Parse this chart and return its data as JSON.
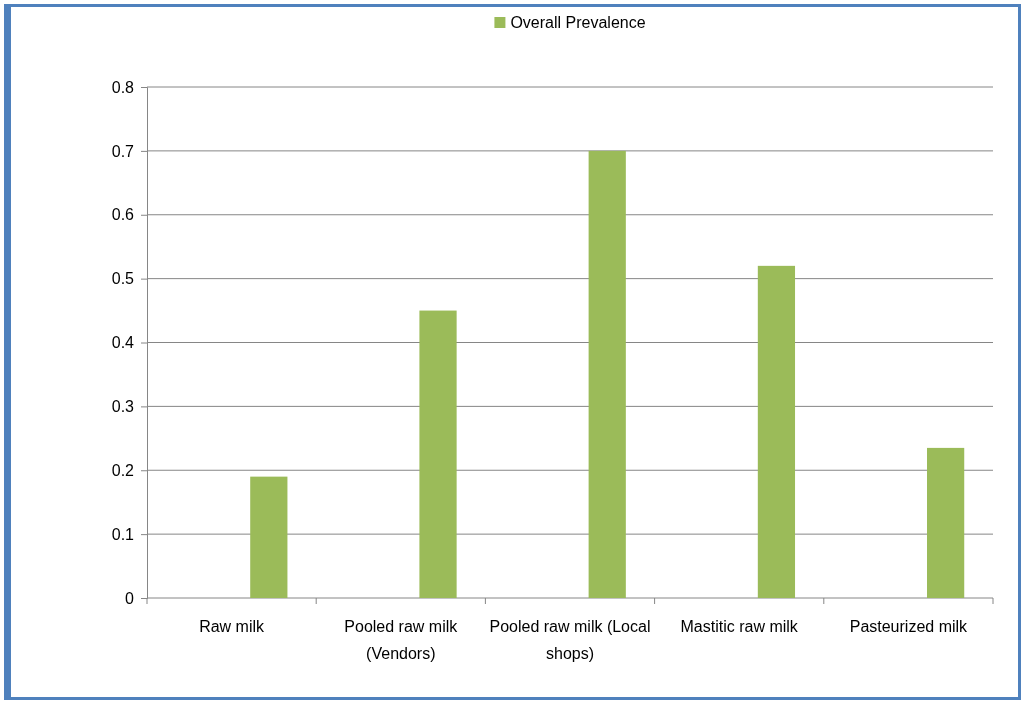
{
  "chart_data": {
    "type": "bar",
    "categories": [
      "Raw milk",
      "Pooled raw milk (Vendors)",
      "Pooled raw milk (Local shops)",
      "Mastitic raw milk",
      "Pasteurized milk"
    ],
    "series": [
      {
        "name": "Overall Prevalence",
        "color": "#9bbb59",
        "values": [
          0.19,
          0.45,
          0.7,
          0.52,
          0.235
        ]
      }
    ],
    "ylim": [
      0,
      0.8
    ],
    "yticks": [
      0,
      0.1,
      0.2,
      0.3,
      0.4,
      0.5,
      0.6,
      0.7,
      0.8
    ],
    "grid": "y",
    "legend": "top"
  }
}
